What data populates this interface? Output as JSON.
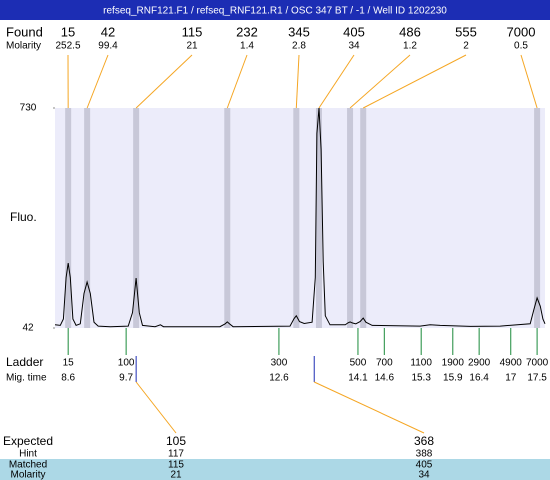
{
  "chart_data": {
    "type": "line",
    "title": "refseq_RNF121.F1 / refseq_RNF121.R1 / OSC 347 BT / -1 / Well ID 1202230",
    "y_label": "Fluo.",
    "color": "#000000",
    "plot_color": "#ececfa",
    "ylim": [
      42,
      730
    ],
    "yticks": [
      42,
      730
    ],
    "xlim": [
      8.35,
      17.65
    ],
    "x": [
      8.35,
      8.45,
      8.51,
      8.56,
      8.6,
      8.64,
      8.69,
      8.75,
      8.83,
      8.9,
      8.96,
      9.02,
      9.09,
      9.17,
      9.4,
      9.74,
      9.82,
      9.89,
      9.95,
      10.01,
      10.25,
      10.35,
      10.41,
      11.48,
      11.58,
      11.62,
      11.66,
      11.73,
      12.81,
      12.89,
      12.93,
      12.99,
      13.08,
      13.23,
      13.29,
      13.32,
      13.36,
      13.4,
      13.44,
      13.48,
      13.57,
      13.86,
      13.91,
      13.95,
      13.99,
      14.06,
      14.14,
      14.2,
      14.25,
      14.37,
      15.28,
      15.47,
      15.66,
      16.23,
      16.8,
      17.37,
      17.44,
      17.5,
      17.56,
      17.61,
      17.65
    ],
    "values": [
      52,
      50,
      70,
      200,
      245,
      200,
      70,
      50,
      55,
      150,
      186,
      150,
      60,
      48,
      46,
      48,
      90,
      198,
      90,
      50,
      46,
      52,
      46,
      46,
      55,
      61,
      55,
      46,
      48,
      72,
      80,
      62,
      56,
      60,
      200,
      650,
      730,
      600,
      250,
      80,
      52,
      52,
      58,
      61,
      58,
      55,
      62,
      73,
      60,
      50,
      48,
      52,
      50,
      47,
      48,
      55,
      100,
      136,
      110,
      70,
      55
    ],
    "found": {
      "label": "Found",
      "molarity_label": "Molarity",
      "sizes": [
        15,
        42,
        115,
        232,
        345,
        405,
        486,
        555,
        7000
      ],
      "molarity": [
        252.5,
        99.4,
        21,
        1.4,
        2.8,
        34,
        1.2,
        2,
        0.5
      ],
      "x": [
        8.6,
        8.96,
        9.89,
        11.62,
        12.93,
        13.36,
        13.95,
        14.2,
        17.5
      ]
    },
    "ladder": {
      "label": "Ladder",
      "time_label": "Mig. time",
      "sizes": [
        15,
        100,
        300,
        500,
        700,
        1100,
        1900,
        2900,
        4900,
        7000
      ],
      "x": [
        8.6,
        9.7,
        12.6,
        14.1,
        14.6,
        15.3,
        15.9,
        16.4,
        17,
        17.5
      ]
    },
    "expected": {
      "label": "Expected",
      "hint_label": "Hint",
      "matched_label": "Matched",
      "molarity_label": "Molarity",
      "x": [
        9.89,
        13.27
      ],
      "expected": [
        105,
        368
      ],
      "hint": [
        117,
        388
      ],
      "matched": [
        115,
        405
      ],
      "molarity": [
        21,
        34
      ]
    }
  }
}
